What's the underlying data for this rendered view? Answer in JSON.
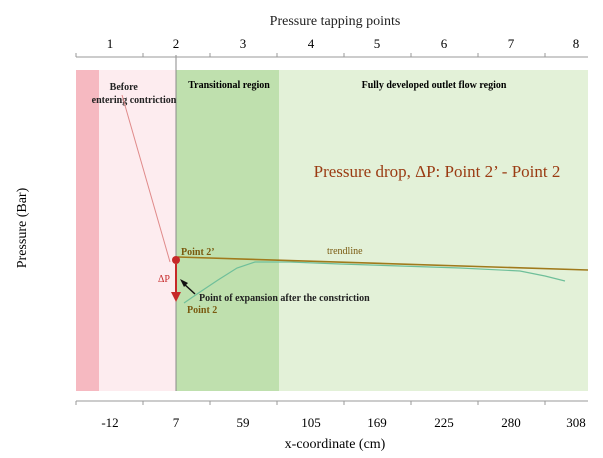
{
  "top_axis": {
    "title": "Pressure tapping points",
    "ticks": [
      "1",
      "2",
      "3",
      "4",
      "5",
      "6",
      "7",
      "8"
    ]
  },
  "bottom_axis": {
    "title": "x-coordinate (cm)",
    "ticks": [
      "-12",
      "7",
      "59",
      "105",
      "169",
      "225",
      "280",
      "308"
    ]
  },
  "y_axis": {
    "title": "Pressure (Bar)"
  },
  "regions": {
    "before": "Before entering contriction",
    "before_line1": "Before",
    "before_line2": "entering contriction",
    "transitional": "Transitional region",
    "developed": "Fully developed outlet flow region"
  },
  "headline": "Pressure drop, ΔP: Point 2’ - Point 2",
  "annotations": {
    "point2_prime": "Point 2’",
    "trendline": "trendline",
    "delta_p": "ΔP",
    "expansion": "Point of expansion after the constriction",
    "point2": "Point 2"
  },
  "colors": {
    "before_red": "#f6b9c1",
    "before_pink": "#fdecef",
    "transitional": "#bfe0ae",
    "developed": "#e3f1d8",
    "trendline": "#a07a1c",
    "measured": "#6fbf9a",
    "marker": "#c62828",
    "headline": "#9a3b12"
  }
}
